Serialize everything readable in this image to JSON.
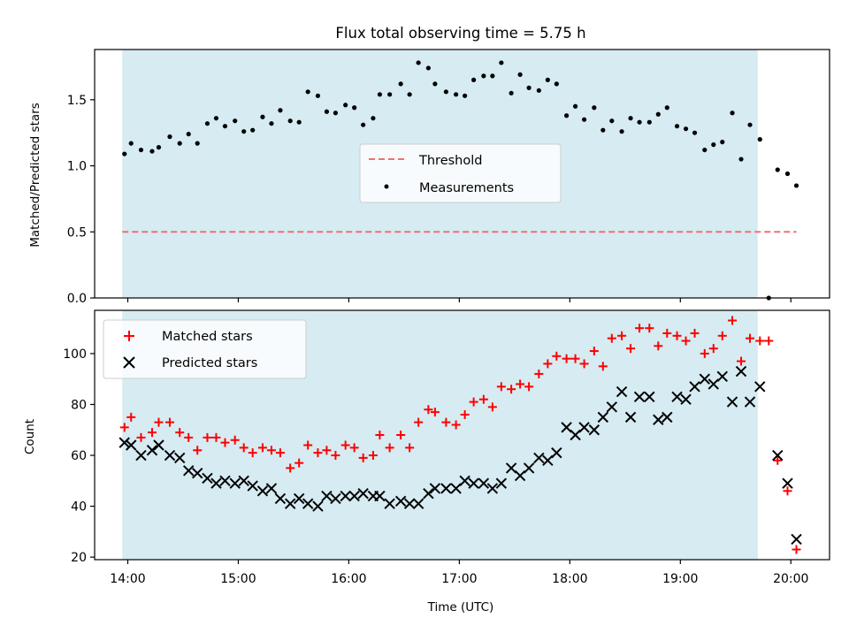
{
  "chart_data": [
    {
      "type": "scatter",
      "title": "Flux total observing time = 5.75 h",
      "xlabel": "",
      "ylabel": "Matched/Predicted stars",
      "xlim": [
        13.7,
        20.35
      ],
      "ylim": [
        0.0,
        1.88
      ],
      "yticks": [
        0.0,
        0.5,
        1.0,
        1.5
      ],
      "ytick_labels": [
        "0.0",
        "0.5",
        "1.0",
        "1.5"
      ],
      "grid": false,
      "shaded_span": {
        "from": 13.95,
        "to": 19.7,
        "color": "#add8e6"
      },
      "legend": {
        "placement": "center",
        "entries": [
          "Threshold",
          "Measurements"
        ]
      },
      "series": [
        {
          "name": "Threshold",
          "kind": "dashed-line",
          "color": "#f07070",
          "x": [
            13.95,
            20.05
          ],
          "y": [
            0.5,
            0.5
          ]
        },
        {
          "name": "Measurements",
          "kind": "dots",
          "color": "#000000",
          "x": [
            13.97,
            14.03,
            14.12,
            14.22,
            14.28,
            14.38,
            14.47,
            14.55,
            14.63,
            14.72,
            14.8,
            14.88,
            14.97,
            15.05,
            15.13,
            15.22,
            15.3,
            15.38,
            15.47,
            15.55,
            15.63,
            15.72,
            15.8,
            15.88,
            15.97,
            16.05,
            16.13,
            16.22,
            16.28,
            16.37,
            16.47,
            16.55,
            16.63,
            16.72,
            16.78,
            16.88,
            16.97,
            17.05,
            17.13,
            17.22,
            17.3,
            17.38,
            17.47,
            17.55,
            17.63,
            17.72,
            17.8,
            17.88,
            17.97,
            18.05,
            18.13,
            18.22,
            18.3,
            18.38,
            18.47,
            18.55,
            18.63,
            18.72,
            18.8,
            18.88,
            18.97,
            19.05,
            19.13,
            19.22,
            19.3,
            19.38,
            19.47,
            19.55,
            19.63,
            19.72,
            19.8,
            19.88,
            19.97,
            20.05
          ],
          "y": [
            1.09,
            1.17,
            1.12,
            1.11,
            1.14,
            1.22,
            1.17,
            1.24,
            1.17,
            1.32,
            1.36,
            1.3,
            1.34,
            1.26,
            1.27,
            1.37,
            1.32,
            1.42,
            1.34,
            1.33,
            1.56,
            1.53,
            1.41,
            1.4,
            1.46,
            1.44,
            1.31,
            1.36,
            1.54,
            1.54,
            1.62,
            1.54,
            1.78,
            1.74,
            1.62,
            1.56,
            1.54,
            1.53,
            1.65,
            1.68,
            1.68,
            1.78,
            1.55,
            1.69,
            1.59,
            1.57,
            1.65,
            1.62,
            1.38,
            1.45,
            1.35,
            1.44,
            1.27,
            1.34,
            1.26,
            1.36,
            1.33,
            1.33,
            1.39,
            1.44,
            1.3,
            1.28,
            1.25,
            1.12,
            1.16,
            1.18,
            1.4,
            1.05,
            1.31,
            1.2,
            0.0,
            0.97,
            0.94,
            0.85
          ]
        }
      ]
    },
    {
      "type": "scatter",
      "title": "",
      "xlabel": "Time (UTC)",
      "ylabel": "Count",
      "xlim": [
        13.7,
        20.35
      ],
      "ylim": [
        19,
        117
      ],
      "yticks": [
        20,
        40,
        60,
        80,
        100
      ],
      "ytick_labels": [
        "20",
        "40",
        "60",
        "80",
        "100"
      ],
      "xticks": [
        14,
        15,
        16,
        17,
        18,
        19,
        20
      ],
      "xtick_labels": [
        "14:00",
        "15:00",
        "16:00",
        "17:00",
        "18:00",
        "19:00",
        "20:00"
      ],
      "grid": false,
      "shaded_span": {
        "from": 13.95,
        "to": 19.7,
        "color": "#add8e6"
      },
      "legend": {
        "placement": "top-left",
        "entries": [
          "Matched stars",
          "Predicted stars"
        ]
      },
      "series": [
        {
          "name": "Matched stars",
          "marker": "plus",
          "color": "#ff0000",
          "x": [
            13.97,
            14.03,
            14.12,
            14.22,
            14.28,
            14.38,
            14.47,
            14.55,
            14.63,
            14.72,
            14.8,
            14.88,
            14.97,
            15.05,
            15.13,
            15.22,
            15.3,
            15.38,
            15.47,
            15.55,
            15.63,
            15.72,
            15.8,
            15.88,
            15.97,
            16.05,
            16.13,
            16.22,
            16.28,
            16.37,
            16.47,
            16.55,
            16.63,
            16.72,
            16.78,
            16.88,
            16.97,
            17.05,
            17.13,
            17.22,
            17.3,
            17.38,
            17.47,
            17.55,
            17.63,
            17.72,
            17.8,
            17.88,
            17.97,
            18.05,
            18.13,
            18.22,
            18.3,
            18.38,
            18.47,
            18.55,
            18.63,
            18.72,
            18.8,
            18.88,
            18.97,
            19.05,
            19.13,
            19.22,
            19.3,
            19.38,
            19.47,
            19.55,
            19.63,
            19.72,
            19.8,
            19.88,
            19.97,
            20.05
          ],
          "y": [
            71,
            75,
            67,
            69,
            73,
            73,
            69,
            67,
            62,
            67,
            67,
            65,
            66,
            63,
            61,
            63,
            62,
            61,
            55,
            57,
            64,
            61,
            62,
            60,
            64,
            63,
            59,
            60,
            68,
            63,
            68,
            63,
            73,
            78,
            77,
            73,
            72,
            76,
            81,
            82,
            79,
            87,
            86,
            88,
            87,
            92,
            96,
            99,
            98,
            98,
            96,
            101,
            95,
            106,
            107,
            102,
            110,
            110,
            103,
            108,
            107,
            105,
            108,
            100,
            102,
            107,
            113,
            97,
            106,
            105,
            105,
            58,
            46,
            23
          ]
        },
        {
          "name": "Predicted stars",
          "marker": "x",
          "color": "#000000",
          "x": [
            13.97,
            14.03,
            14.12,
            14.22,
            14.28,
            14.38,
            14.47,
            14.55,
            14.63,
            14.72,
            14.8,
            14.88,
            14.97,
            15.05,
            15.13,
            15.22,
            15.3,
            15.38,
            15.47,
            15.55,
            15.63,
            15.72,
            15.8,
            15.88,
            15.97,
            16.05,
            16.13,
            16.22,
            16.28,
            16.37,
            16.47,
            16.55,
            16.63,
            16.72,
            16.78,
            16.88,
            16.97,
            17.05,
            17.13,
            17.22,
            17.3,
            17.38,
            17.47,
            17.55,
            17.63,
            17.72,
            17.8,
            17.88,
            17.97,
            18.05,
            18.13,
            18.22,
            18.3,
            18.38,
            18.47,
            18.55,
            18.63,
            18.72,
            18.8,
            18.88,
            18.97,
            19.05,
            19.13,
            19.22,
            19.3,
            19.38,
            19.47,
            19.55,
            19.63,
            19.72,
            19.88,
            19.97,
            20.05
          ],
          "y": [
            65,
            64,
            60,
            62,
            64,
            60,
            59,
            54,
            53,
            51,
            49,
            50,
            49,
            50,
            48,
            46,
            47,
            43,
            41,
            43,
            41,
            40,
            44,
            43,
            44,
            44,
            45,
            44,
            44,
            41,
            42,
            41,
            41,
            45,
            47,
            47,
            47,
            50,
            49,
            49,
            47,
            49,
            55,
            52,
            55,
            59,
            58,
            61,
            71,
            68,
            71,
            70,
            75,
            79,
            85,
            75,
            83,
            83,
            74,
            75,
            83,
            82,
            87,
            90,
            88,
            91,
            81,
            93,
            81,
            87,
            60,
            49,
            27
          ]
        }
      ]
    }
  ]
}
